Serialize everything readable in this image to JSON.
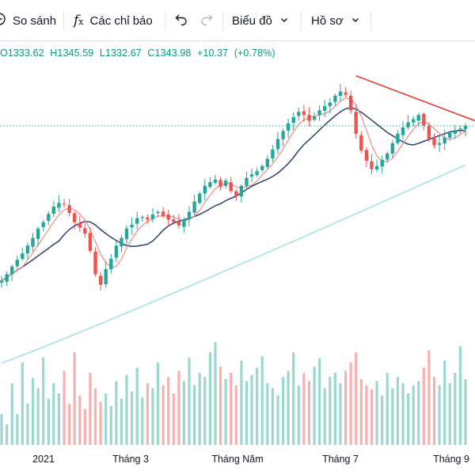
{
  "toolbar": {
    "compare_label": "So sánh",
    "indicators_label": "Các chỉ báo",
    "chart_type_label": "Biểu đồ",
    "profile_label": "Hồ sơ",
    "icons": {
      "compare": "circle-plus-icon",
      "indicators": "fx-icon",
      "undo": "undo-icon",
      "redo": "redo-icon",
      "chevron": "chevron-down-icon"
    }
  },
  "legend": {
    "open": "O1333.62",
    "high": "H1345.59",
    "low": "L1332.67",
    "close": "C1343.98",
    "change": "+10.37",
    "change_pct": "(+0.78%)"
  },
  "colors": {
    "up": "#26a69a",
    "down": "#ef5350",
    "ma_short": "#f28b82",
    "ma_mid": "#2a3f73",
    "ma_long": "#9fe3ec",
    "trendline": "#e53935",
    "price_line": "#26a69a",
    "legend_text": "#089981"
  },
  "chart_data": {
    "type": "candlestick",
    "x_tick_labels": [
      "2021",
      "Tháng 3",
      "Tháng Năm",
      "Tháng 7",
      "Tháng 9"
    ],
    "close_path": [
      1018,
      1030,
      1045,
      1058,
      1070,
      1085,
      1100,
      1118,
      1130,
      1146,
      1160,
      1167,
      1165,
      1148,
      1130,
      1120,
      1108,
      1075,
      1030,
      1010,
      1040,
      1060,
      1085,
      1100,
      1118,
      1125,
      1138,
      1140,
      1135,
      1145,
      1150,
      1142,
      1135,
      1130,
      1124,
      1135,
      1150,
      1170,
      1185,
      1200,
      1207,
      1212,
      1198,
      1210,
      1190,
      1180,
      1200,
      1215,
      1222,
      1228,
      1238,
      1252,
      1270,
      1290,
      1305,
      1320,
      1332,
      1342,
      1336,
      1325,
      1333,
      1345,
      1353,
      1360,
      1373,
      1381,
      1375,
      1345,
      1300,
      1268,
      1248,
      1232,
      1238,
      1250,
      1262,
      1282,
      1300,
      1312,
      1322,
      1328,
      1336,
      1316,
      1290,
      1278,
      1282,
      1293,
      1302,
      1305,
      1310,
      1315
    ],
    "volume_path": [
      30,
      20,
      60,
      30,
      80,
      40,
      65,
      55,
      85,
      45,
      60,
      50,
      72,
      40,
      90,
      48,
      35,
      70,
      55,
      42,
      50,
      38,
      62,
      45,
      68,
      52,
      75,
      46,
      60,
      55,
      80,
      58,
      66,
      50,
      72,
      62,
      85,
      58,
      70,
      66,
      90,
      100,
      76,
      64,
      70,
      58,
      82,
      62,
      68,
      75,
      86,
      60,
      55,
      48,
      66,
      72,
      90,
      58,
      70,
      62,
      76,
      84,
      55,
      66,
      70,
      60,
      72,
      80,
      90,
      64,
      58,
      54,
      62,
      48,
      70,
      55,
      66,
      60,
      50,
      58,
      62,
      75,
      92,
      66,
      58,
      82,
      60,
      70,
      96,
      64
    ],
    "moving_averages": [
      "ma_short",
      "ma_mid",
      "ma_long"
    ],
    "ma_long_range": [
      860,
      1240
    ],
    "trendline": [
      [
        1396,
        1352
      ],
      [
        1331,
        1345
      ]
    ],
    "last_close": 1343.98,
    "price_line": 1315,
    "price_range": [
      900,
      1420
    ],
    "y_axis_labels": "not visible",
    "grid": false
  }
}
